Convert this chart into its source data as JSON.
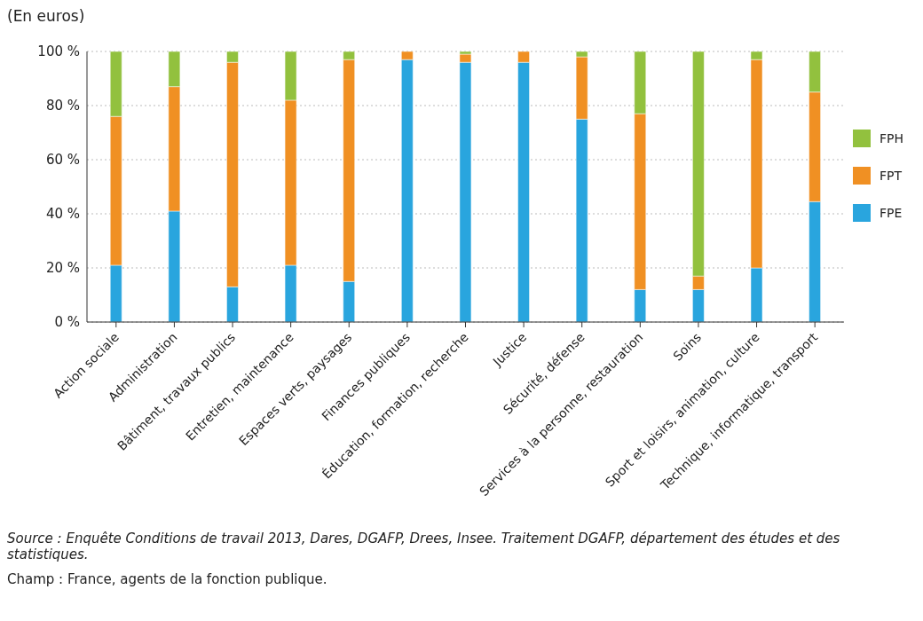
{
  "chart_data": {
    "type": "bar",
    "subtitle": "(En euros)",
    "stacked": true,
    "categories": [
      "Action sociale",
      "Administration",
      "Bâtiment, travaux publics",
      "Entretien, maintenance",
      "Espaces verts, paysages",
      "Finances publiques",
      "Éducation, formation, recherche",
      "Justice",
      "Sécurité, défense",
      "Services à la personne, restauration",
      "Soins",
      "Sport et loisirs, animation, culture",
      "Technique, informatique, transport"
    ],
    "series": [
      {
        "name": "FPE",
        "color": "#29a5de",
        "values": [
          21,
          41,
          13,
          21,
          15,
          97,
          96,
          96,
          75,
          12,
          12,
          20,
          44.5
        ]
      },
      {
        "name": "FPT",
        "color": "#f09023",
        "values": [
          55,
          46,
          83,
          61,
          82,
          3,
          3,
          4,
          23,
          65,
          5,
          77,
          40.5
        ]
      },
      {
        "name": "FPH",
        "color": "#92c13e",
        "values": [
          24,
          13,
          4,
          18,
          3,
          0,
          1,
          0,
          2,
          23,
          83,
          3,
          15
        ]
      }
    ],
    "ylim": [
      0,
      100
    ],
    "yticks": [
      {
        "value": 0,
        "label": "0 %"
      },
      {
        "value": 20,
        "label": "20 %"
      },
      {
        "value": 40,
        "label": "40 %"
      },
      {
        "value": 60,
        "label": "60 %"
      },
      {
        "value": 80,
        "label": "80 %"
      },
      {
        "value": 100,
        "label": "100 %"
      }
    ],
    "grid": "y",
    "legend": "right",
    "annotations": [
      "Source : Enquête Conditions de travail 2013, Dares, DGAFP, Drees, Insee. Traitement DGAFP, département des études et des statistiques.",
      "Champ : France, agents de la fonction publique."
    ]
  }
}
